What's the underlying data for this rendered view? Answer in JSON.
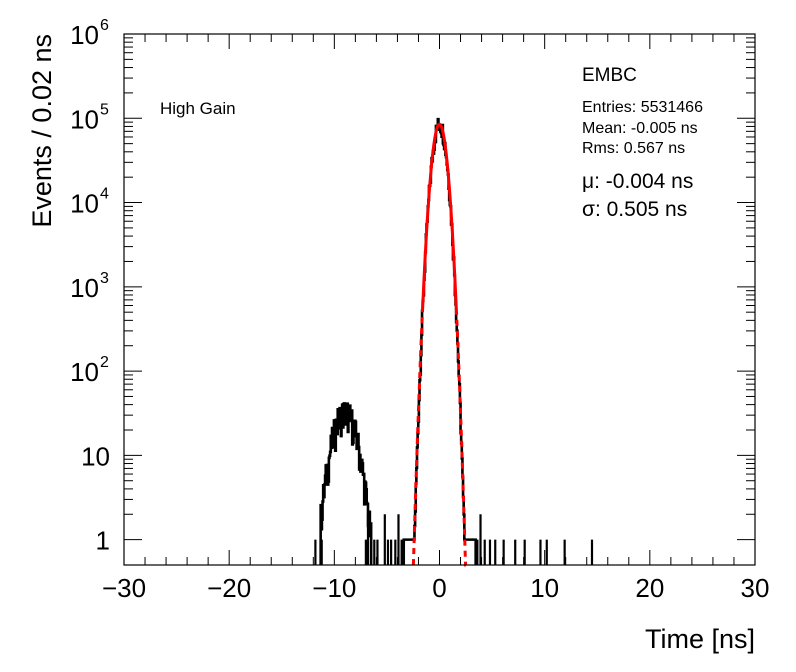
{
  "chart_data": {
    "type": "histogram",
    "xlabel": "Time [ns]",
    "ylabel": "Events / 0.02 ns",
    "xlim": [
      -30,
      30
    ],
    "ylim": [
      0.5,
      1000000
    ],
    "y_scale": "log",
    "grid": false,
    "x_ticks": [
      {
        "value": -30,
        "label": "−30"
      },
      {
        "value": -20,
        "label": "−20"
      },
      {
        "value": -10,
        "label": "−10"
      },
      {
        "value": 0,
        "label": "0"
      },
      {
        "value": 10,
        "label": "10"
      },
      {
        "value": 20,
        "label": "20"
      },
      {
        "value": 30,
        "label": "30"
      }
    ],
    "y_ticks": [
      {
        "value": 1,
        "base": "1",
        "exp": ""
      },
      {
        "value": 10,
        "base": "10",
        "exp": ""
      },
      {
        "value": 100,
        "base": "10",
        "exp": "2"
      },
      {
        "value": 1000,
        "base": "10",
        "exp": "3"
      },
      {
        "value": 10000,
        "base": "10",
        "exp": "4"
      },
      {
        "value": 100000,
        "base": "10",
        "exp": "5"
      },
      {
        "value": 1000000,
        "base": "10",
        "exp": "6"
      }
    ],
    "histogram": {
      "name": "EMBC",
      "color": "#000000",
      "core": {
        "mean": 0.0,
        "sigma": 0.5,
        "peak": 85000,
        "x_range": [
          -3.4,
          3.4
        ]
      },
      "secondary": {
        "mean": -9.0,
        "sigma": 0.95,
        "peak": 32,
        "x_range": [
          -11.3,
          -6.5
        ]
      },
      "sparse_entries": [
        {
          "x": -11.8,
          "y": 1
        },
        {
          "x": -11.2,
          "y": 1
        },
        {
          "x": -7.0,
          "y": 1
        },
        {
          "x": -6.8,
          "y": 2
        },
        {
          "x": -6.2,
          "y": 1
        },
        {
          "x": -5.9,
          "y": 1
        },
        {
          "x": -5.2,
          "y": 2
        },
        {
          "x": -4.9,
          "y": 1
        },
        {
          "x": -4.6,
          "y": 1
        },
        {
          "x": -4.2,
          "y": 1
        },
        {
          "x": -3.9,
          "y": 2
        },
        {
          "x": -3.6,
          "y": 1
        },
        {
          "x": 3.6,
          "y": 1
        },
        {
          "x": 3.9,
          "y": 2
        },
        {
          "x": 4.3,
          "y": 1
        },
        {
          "x": 4.8,
          "y": 1
        },
        {
          "x": 5.3,
          "y": 1
        },
        {
          "x": 6.1,
          "y": 1
        },
        {
          "x": 7.2,
          "y": 1
        },
        {
          "x": 8.1,
          "y": 1
        },
        {
          "x": 9.6,
          "y": 1
        },
        {
          "x": 10.2,
          "y": 1
        },
        {
          "x": 11.9,
          "y": 1
        },
        {
          "x": 14.5,
          "y": 1
        }
      ]
    },
    "fit": {
      "mu": -0.004,
      "sigma": 0.505,
      "peak": 85000,
      "color": "#ff0000",
      "solid_range": [
        -1.6,
        1.6
      ],
      "dashed_range": [
        -2.5,
        2.5
      ]
    }
  },
  "stats": {
    "histogram_name": "EMBC",
    "entries": "Entries: 5531466",
    "mean": "Mean: -0.005 ns",
    "rms": "Rms: 0.567 ns",
    "mu": "μ: -0.004 ns",
    "sigma": "σ: 0.505 ns"
  },
  "annotation": {
    "gain_label": "High Gain"
  }
}
